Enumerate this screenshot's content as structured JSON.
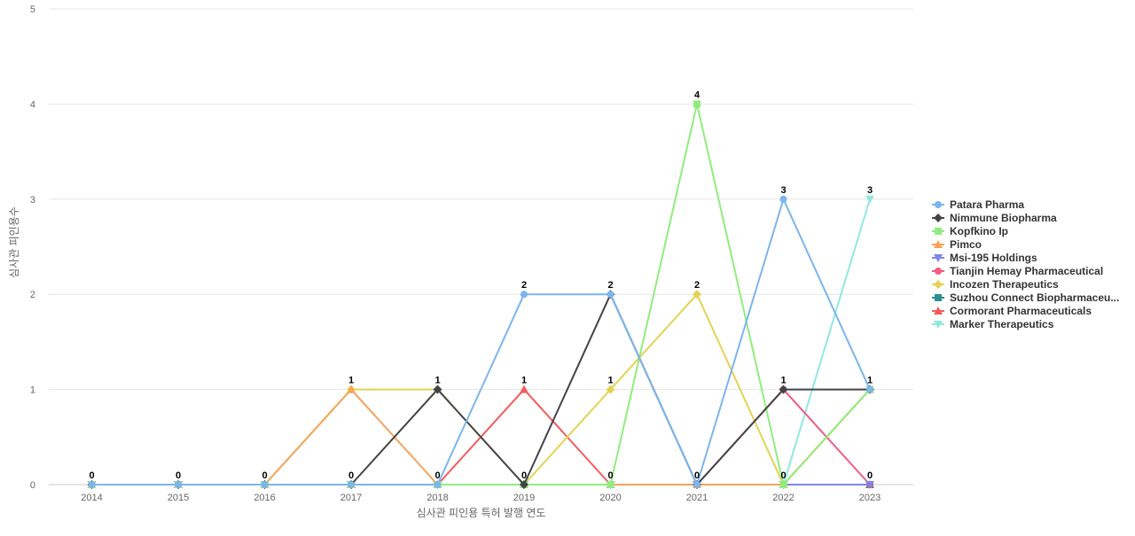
{
  "chart_data": {
    "type": "line",
    "title": "",
    "xlabel": "심사관 피인용 특허 발행 연도",
    "ylabel": "심사관 피인용수",
    "x": [
      2014,
      2015,
      2016,
      2017,
      2018,
      2019,
      2020,
      2021,
      2022,
      2023
    ],
    "ylim": [
      0,
      5
    ],
    "yticks": [
      0,
      1,
      2,
      3,
      4,
      5
    ],
    "grid": true,
    "legend_position": "right",
    "series": [
      {
        "name": "Patara Pharma",
        "color": "#7cb5ec",
        "marker": "circle",
        "values": [
          0,
          0,
          0,
          0,
          0,
          2,
          2,
          0,
          3,
          1
        ]
      },
      {
        "name": "Nimmune Biopharma",
        "color": "#434348",
        "marker": "diamond",
        "values": [
          0,
          0,
          0,
          0,
          1,
          0,
          2,
          0,
          1,
          1
        ]
      },
      {
        "name": "Kopfkino Ip",
        "color": "#90ed7d",
        "marker": "square",
        "values": [
          0,
          0,
          0,
          0,
          0,
          0,
          0,
          4,
          0,
          1
        ]
      },
      {
        "name": "Pimco",
        "color": "#f7a35c",
        "marker": "triangle",
        "values": [
          0,
          0,
          0,
          1,
          0,
          0,
          0,
          0,
          0,
          1
        ]
      },
      {
        "name": "Msi-195 Holdings",
        "color": "#8085e9",
        "marker": "triangle-down",
        "values": [
          0,
          0,
          0,
          0,
          0,
          0,
          0,
          0,
          0,
          0
        ]
      },
      {
        "name": "Tianjin Hemay Pharmaceutical",
        "color": "#f15c80",
        "marker": "circle",
        "values": [
          0,
          0,
          0,
          0,
          0,
          0,
          0,
          0,
          1,
          0
        ]
      },
      {
        "name": "Incozen Therapeutics",
        "color": "#e4d354",
        "marker": "diamond",
        "values": [
          0,
          0,
          0,
          1,
          1,
          0,
          1,
          2,
          0,
          1
        ]
      },
      {
        "name": "Suzhou Connect Biopharmaceu...",
        "color": "#2b908f",
        "marker": "square",
        "values": [
          0,
          0,
          0,
          0,
          0,
          0,
          0,
          0,
          0,
          0
        ]
      },
      {
        "name": "Cormorant Pharmaceuticals",
        "color": "#f45b5b",
        "marker": "triangle",
        "values": [
          0,
          0,
          0,
          0,
          0,
          1,
          0,
          0,
          0,
          0
        ]
      },
      {
        "name": "Marker Therapeutics",
        "color": "#91e8e1",
        "marker": "triangle-down",
        "values": [
          0,
          0,
          0,
          0,
          0,
          0,
          0,
          0,
          0,
          3
        ]
      }
    ],
    "point_labels": [
      {
        "x": 2014,
        "text": "0"
      },
      {
        "x": 2015,
        "text": "0"
      },
      {
        "x": 2016,
        "text": "0"
      },
      {
        "x": 2017,
        "text": "0"
      },
      {
        "x": 2017,
        "text": "1"
      },
      {
        "x": 2018,
        "text": "0"
      },
      {
        "x": 2018,
        "text": "1"
      },
      {
        "x": 2019,
        "text": "0"
      },
      {
        "x": 2019,
        "text": "1"
      },
      {
        "x": 2019,
        "text": "2"
      },
      {
        "x": 2020,
        "text": "0"
      },
      {
        "x": 2020,
        "text": "1"
      },
      {
        "x": 2020,
        "text": "2"
      },
      {
        "x": 2021,
        "text": "0"
      },
      {
        "x": 2021,
        "text": "2"
      },
      {
        "x": 2021,
        "text": "4"
      },
      {
        "x": 2022,
        "text": "0"
      },
      {
        "x": 2022,
        "text": "1"
      },
      {
        "x": 2022,
        "text": "3"
      },
      {
        "x": 2023,
        "text": "0"
      },
      {
        "x": 2023,
        "text": "1"
      },
      {
        "x": 2023,
        "text": "3"
      }
    ]
  }
}
